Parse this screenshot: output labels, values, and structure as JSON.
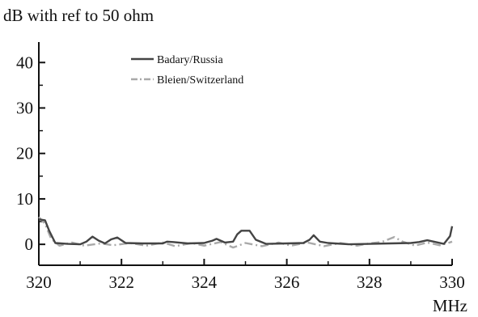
{
  "chart_data": {
    "type": "line",
    "ylabel": "dB with ref to 50 ohm",
    "xlabel": "MHz",
    "xlim": [
      320,
      330
    ],
    "ylim": [
      -4.6,
      44.5
    ],
    "xticks": [
      320,
      322,
      324,
      326,
      328,
      330
    ],
    "yticks": [
      0,
      10,
      20,
      30,
      40
    ],
    "yminor": [
      5,
      15,
      25,
      35
    ],
    "xminor": [
      321,
      323,
      325,
      327,
      329
    ],
    "grid": false,
    "legend_position": "top-center",
    "series": [
      {
        "name": "Badary/Russia",
        "color": "#444444",
        "dash": "solid",
        "points": [
          [
            320.0,
            5.5
          ],
          [
            320.15,
            5.3
          ],
          [
            320.25,
            3.0
          ],
          [
            320.4,
            0.3
          ],
          [
            320.7,
            0.1
          ],
          [
            321.0,
            0.0
          ],
          [
            321.15,
            0.6
          ],
          [
            321.3,
            1.7
          ],
          [
            321.45,
            0.8
          ],
          [
            321.6,
            0.2
          ],
          [
            321.75,
            1.1
          ],
          [
            321.9,
            1.5
          ],
          [
            322.1,
            0.3
          ],
          [
            322.5,
            0.2
          ],
          [
            323.0,
            0.2
          ],
          [
            323.1,
            0.6
          ],
          [
            323.25,
            0.5
          ],
          [
            323.6,
            0.2
          ],
          [
            324.0,
            0.3
          ],
          [
            324.2,
            0.8
          ],
          [
            324.3,
            1.2
          ],
          [
            324.5,
            0.4
          ],
          [
            324.7,
            0.6
          ],
          [
            324.8,
            2.2
          ],
          [
            324.9,
            3.0
          ],
          [
            325.1,
            3.0
          ],
          [
            325.25,
            1.0
          ],
          [
            325.5,
            0.1
          ],
          [
            326.0,
            0.2
          ],
          [
            326.4,
            0.3
          ],
          [
            326.55,
            1.0
          ],
          [
            326.65,
            2.0
          ],
          [
            326.8,
            0.6
          ],
          [
            327.0,
            0.3
          ],
          [
            327.5,
            0.0
          ],
          [
            328.0,
            0.1
          ],
          [
            328.5,
            0.2
          ],
          [
            329.0,
            0.3
          ],
          [
            329.2,
            0.5
          ],
          [
            329.4,
            0.9
          ],
          [
            329.6,
            0.5
          ],
          [
            329.8,
            0.1
          ],
          [
            329.95,
            1.8
          ],
          [
            330.0,
            4.0
          ]
        ]
      },
      {
        "name": "Bleien/Switzerland",
        "color": "#a9a9a9",
        "dash": "10,4,2,4",
        "points": [
          [
            320.0,
            6.0
          ],
          [
            320.15,
            4.5
          ],
          [
            320.3,
            1.2
          ],
          [
            320.5,
            -0.3
          ],
          [
            320.8,
            0.4
          ],
          [
            321.1,
            -0.3
          ],
          [
            321.5,
            0.2
          ],
          [
            321.8,
            -0.2
          ],
          [
            322.2,
            0.3
          ],
          [
            322.6,
            -0.3
          ],
          [
            323.0,
            0.4
          ],
          [
            323.3,
            -0.4
          ],
          [
            323.7,
            0.3
          ],
          [
            324.0,
            -0.3
          ],
          [
            324.4,
            0.5
          ],
          [
            324.7,
            -0.7
          ],
          [
            325.0,
            0.3
          ],
          [
            325.4,
            -0.4
          ],
          [
            325.8,
            0.4
          ],
          [
            326.1,
            -0.3
          ],
          [
            326.5,
            0.4
          ],
          [
            326.9,
            -0.4
          ],
          [
            327.3,
            0.3
          ],
          [
            327.7,
            -0.3
          ],
          [
            328.0,
            0.2
          ],
          [
            328.3,
            0.5
          ],
          [
            328.6,
            1.6
          ],
          [
            328.8,
            0.6
          ],
          [
            329.1,
            -0.3
          ],
          [
            329.4,
            0.4
          ],
          [
            329.7,
            -0.2
          ],
          [
            329.9,
            0.3
          ],
          [
            330.0,
            0.6
          ]
        ]
      }
    ]
  }
}
